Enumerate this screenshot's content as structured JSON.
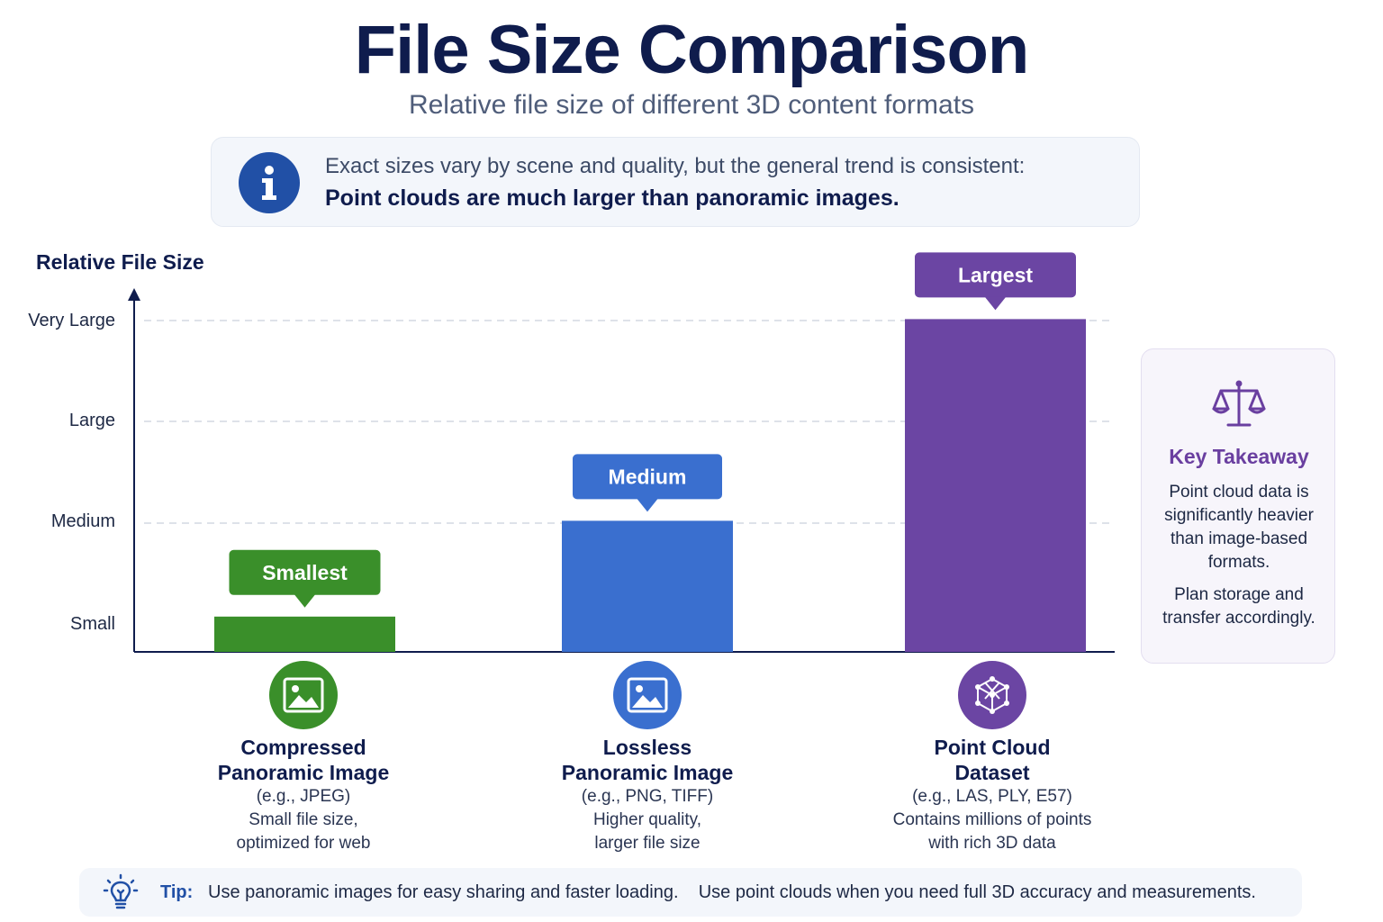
{
  "title": "File Size Comparison",
  "subtitle": "Relative file size of different 3D content formats",
  "info": {
    "icon": "info-icon",
    "line1": "Exact sizes vary by scene and quality, but the general trend is consistent:",
    "line2": "Point clouds are much larger than panoramic images."
  },
  "chart_data": {
    "type": "bar",
    "ylabel": "Relative File Size",
    "y_ticks": [
      "Small",
      "Medium",
      "Large",
      "Very Large"
    ],
    "ylim": [
      0,
      4
    ],
    "grid": true,
    "categories": [
      "Compressed Panoramic Image",
      "Lossless Panoramic Image",
      "Point Cloud Dataset"
    ],
    "values": [
      0.35,
      1.3,
      3.3
    ],
    "data_labels": [
      "Smallest",
      "Medium",
      "Largest"
    ],
    "colors": [
      "#3a8f2a",
      "#3a6fcf",
      "#6b45a3"
    ]
  },
  "categories": [
    {
      "name_line1": "Compressed",
      "name_line2": "Panoramic Image",
      "example": "(e.g., JPEG)",
      "desc_line1": "Small file size,",
      "desc_line2": "optimized for web",
      "icon": "image-icon",
      "color": "#3a8f2a"
    },
    {
      "name_line1": "Lossless",
      "name_line2": "Panoramic Image",
      "example": "(e.g., PNG, TIFF)",
      "desc_line1": "Higher quality,",
      "desc_line2": "larger file size",
      "icon": "image-icon",
      "color": "#3a6fcf"
    },
    {
      "name_line1": "Point Cloud",
      "name_line2": "Dataset",
      "example": "(e.g., LAS, PLY, E57)",
      "desc_line1": "Contains millions of points",
      "desc_line2": "with rich 3D data",
      "icon": "cube-network-icon",
      "color": "#6b45a3"
    }
  ],
  "takeaway": {
    "icon": "scales-icon",
    "title": "Key Takeaway",
    "p1": "Point cloud data is significantly heavier than image-based formats.",
    "p2": "Plan storage and transfer accordingly."
  },
  "tip": {
    "icon": "lightbulb-icon",
    "label": "Tip:",
    "text": "Use panoramic images for easy sharing and faster loading.    Use point clouds when you need full 3D accuracy and measurements."
  }
}
